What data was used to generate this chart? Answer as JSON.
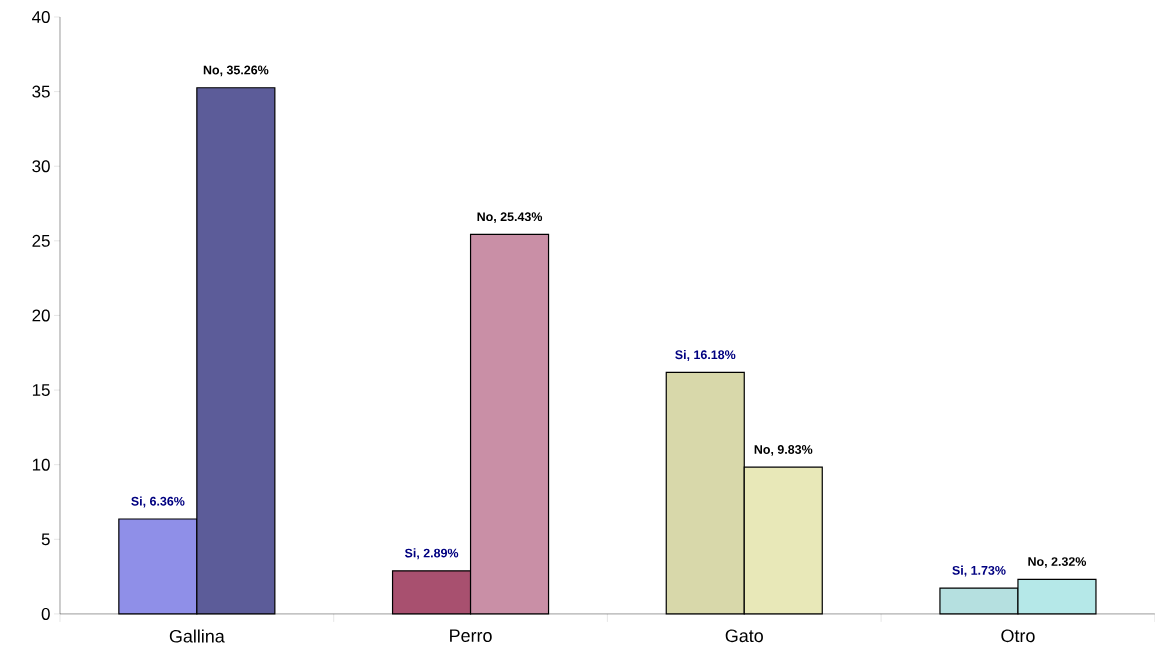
{
  "chart_data": {
    "type": "bar",
    "categories": [
      "Gallina",
      "Perro",
      "Gato",
      "Otro"
    ],
    "series": [
      {
        "colors": [
          "#8f8fe8",
          "#a8506f",
          "#d8d8aa",
          "#b5e0e0"
        ],
        "values": [
          6.36,
          2.89,
          16.18,
          1.73
        ],
        "value_labels": [
          "Si, 6.36%",
          "Si, 2.89%",
          "Si, 16.18%",
          "Si, 1.73%"
        ]
      },
      {
        "colors": [
          "#5c5c99",
          "#c98fa6",
          "#e8e8b8",
          "#b5e8e8"
        ],
        "values": [
          35.26,
          25.43,
          9.83,
          2.32
        ],
        "value_labels": [
          "No, 35.26%",
          "No, 25.43%",
          "No, 9.83%",
          "No, 2.32%"
        ]
      }
    ],
    "ylim": [
      0,
      40
    ],
    "yticks": [
      0,
      5,
      10,
      15,
      20,
      25,
      30,
      35,
      40
    ]
  }
}
